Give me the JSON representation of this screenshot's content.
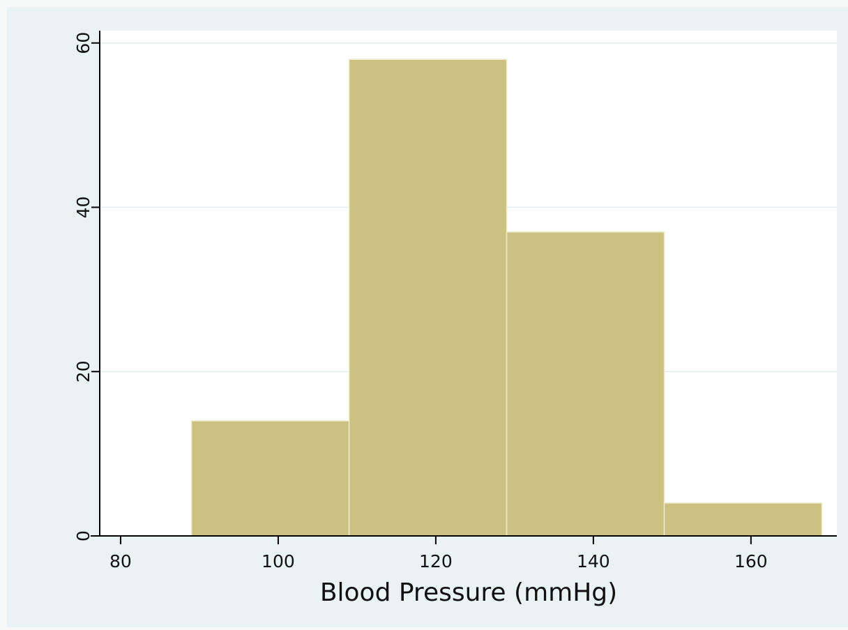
{
  "chart_data": {
    "type": "histogram",
    "x_label": "Blood Pressure (mmHg)",
    "bins": [
      89,
      109,
      129,
      149,
      169
    ],
    "values": [
      14,
      58,
      37,
      4
    ],
    "color": "#cbc282",
    "xlim": [
      77.35,
      170.9
    ],
    "xticks": [
      80,
      100,
      120,
      140,
      160
    ],
    "ylim": [
      0,
      61.5
    ],
    "yticks": [
      0,
      20,
      40,
      60
    ],
    "grid": true
  }
}
